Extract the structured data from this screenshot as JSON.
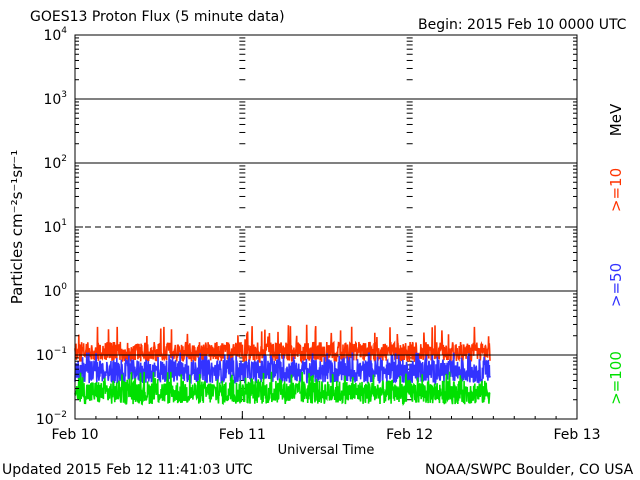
{
  "chart_data": {
    "type": "line",
    "title": "GOES13 Proton Flux (5 minute data)",
    "begin_label": "Begin: 2015 Feb 10 0000 UTC",
    "xlabel": "Universal Time",
    "ylabel": "Particles cm⁻²s⁻¹sr⁻¹",
    "yscale": "log",
    "ylim_exponents": [
      -2,
      4
    ],
    "y_tick_exponents": [
      4,
      3,
      2,
      1,
      0,
      -1,
      -2
    ],
    "x_ticks": [
      "Feb 10",
      "Feb 11",
      "Feb 12",
      "Feb 13"
    ],
    "xlim_days": [
      0,
      3
    ],
    "data_end_day": 2.48,
    "unit_label": "MeV",
    "threshold_exponents": [
      0,
      -1
    ],
    "series": [
      {
        "name": ">=10",
        "color": "#ff3300",
        "level": 0.11,
        "lo": 0.078,
        "hi": 0.16,
        "spike_max": 0.3
      },
      {
        "name": ">=50",
        "color": "#3333ff",
        "level": 0.055,
        "lo": 0.036,
        "hi": 0.085,
        "spike_max": 0.11
      },
      {
        "name": ">=100",
        "color": "#00e000",
        "level": 0.026,
        "lo": 0.017,
        "hi": 0.04,
        "spike_max": 0.055
      }
    ]
  },
  "footer": {
    "updated": "Updated 2015 Feb 12 11:41:03 UTC",
    "credit": "NOAA/SWPC Boulder, CO USA"
  }
}
